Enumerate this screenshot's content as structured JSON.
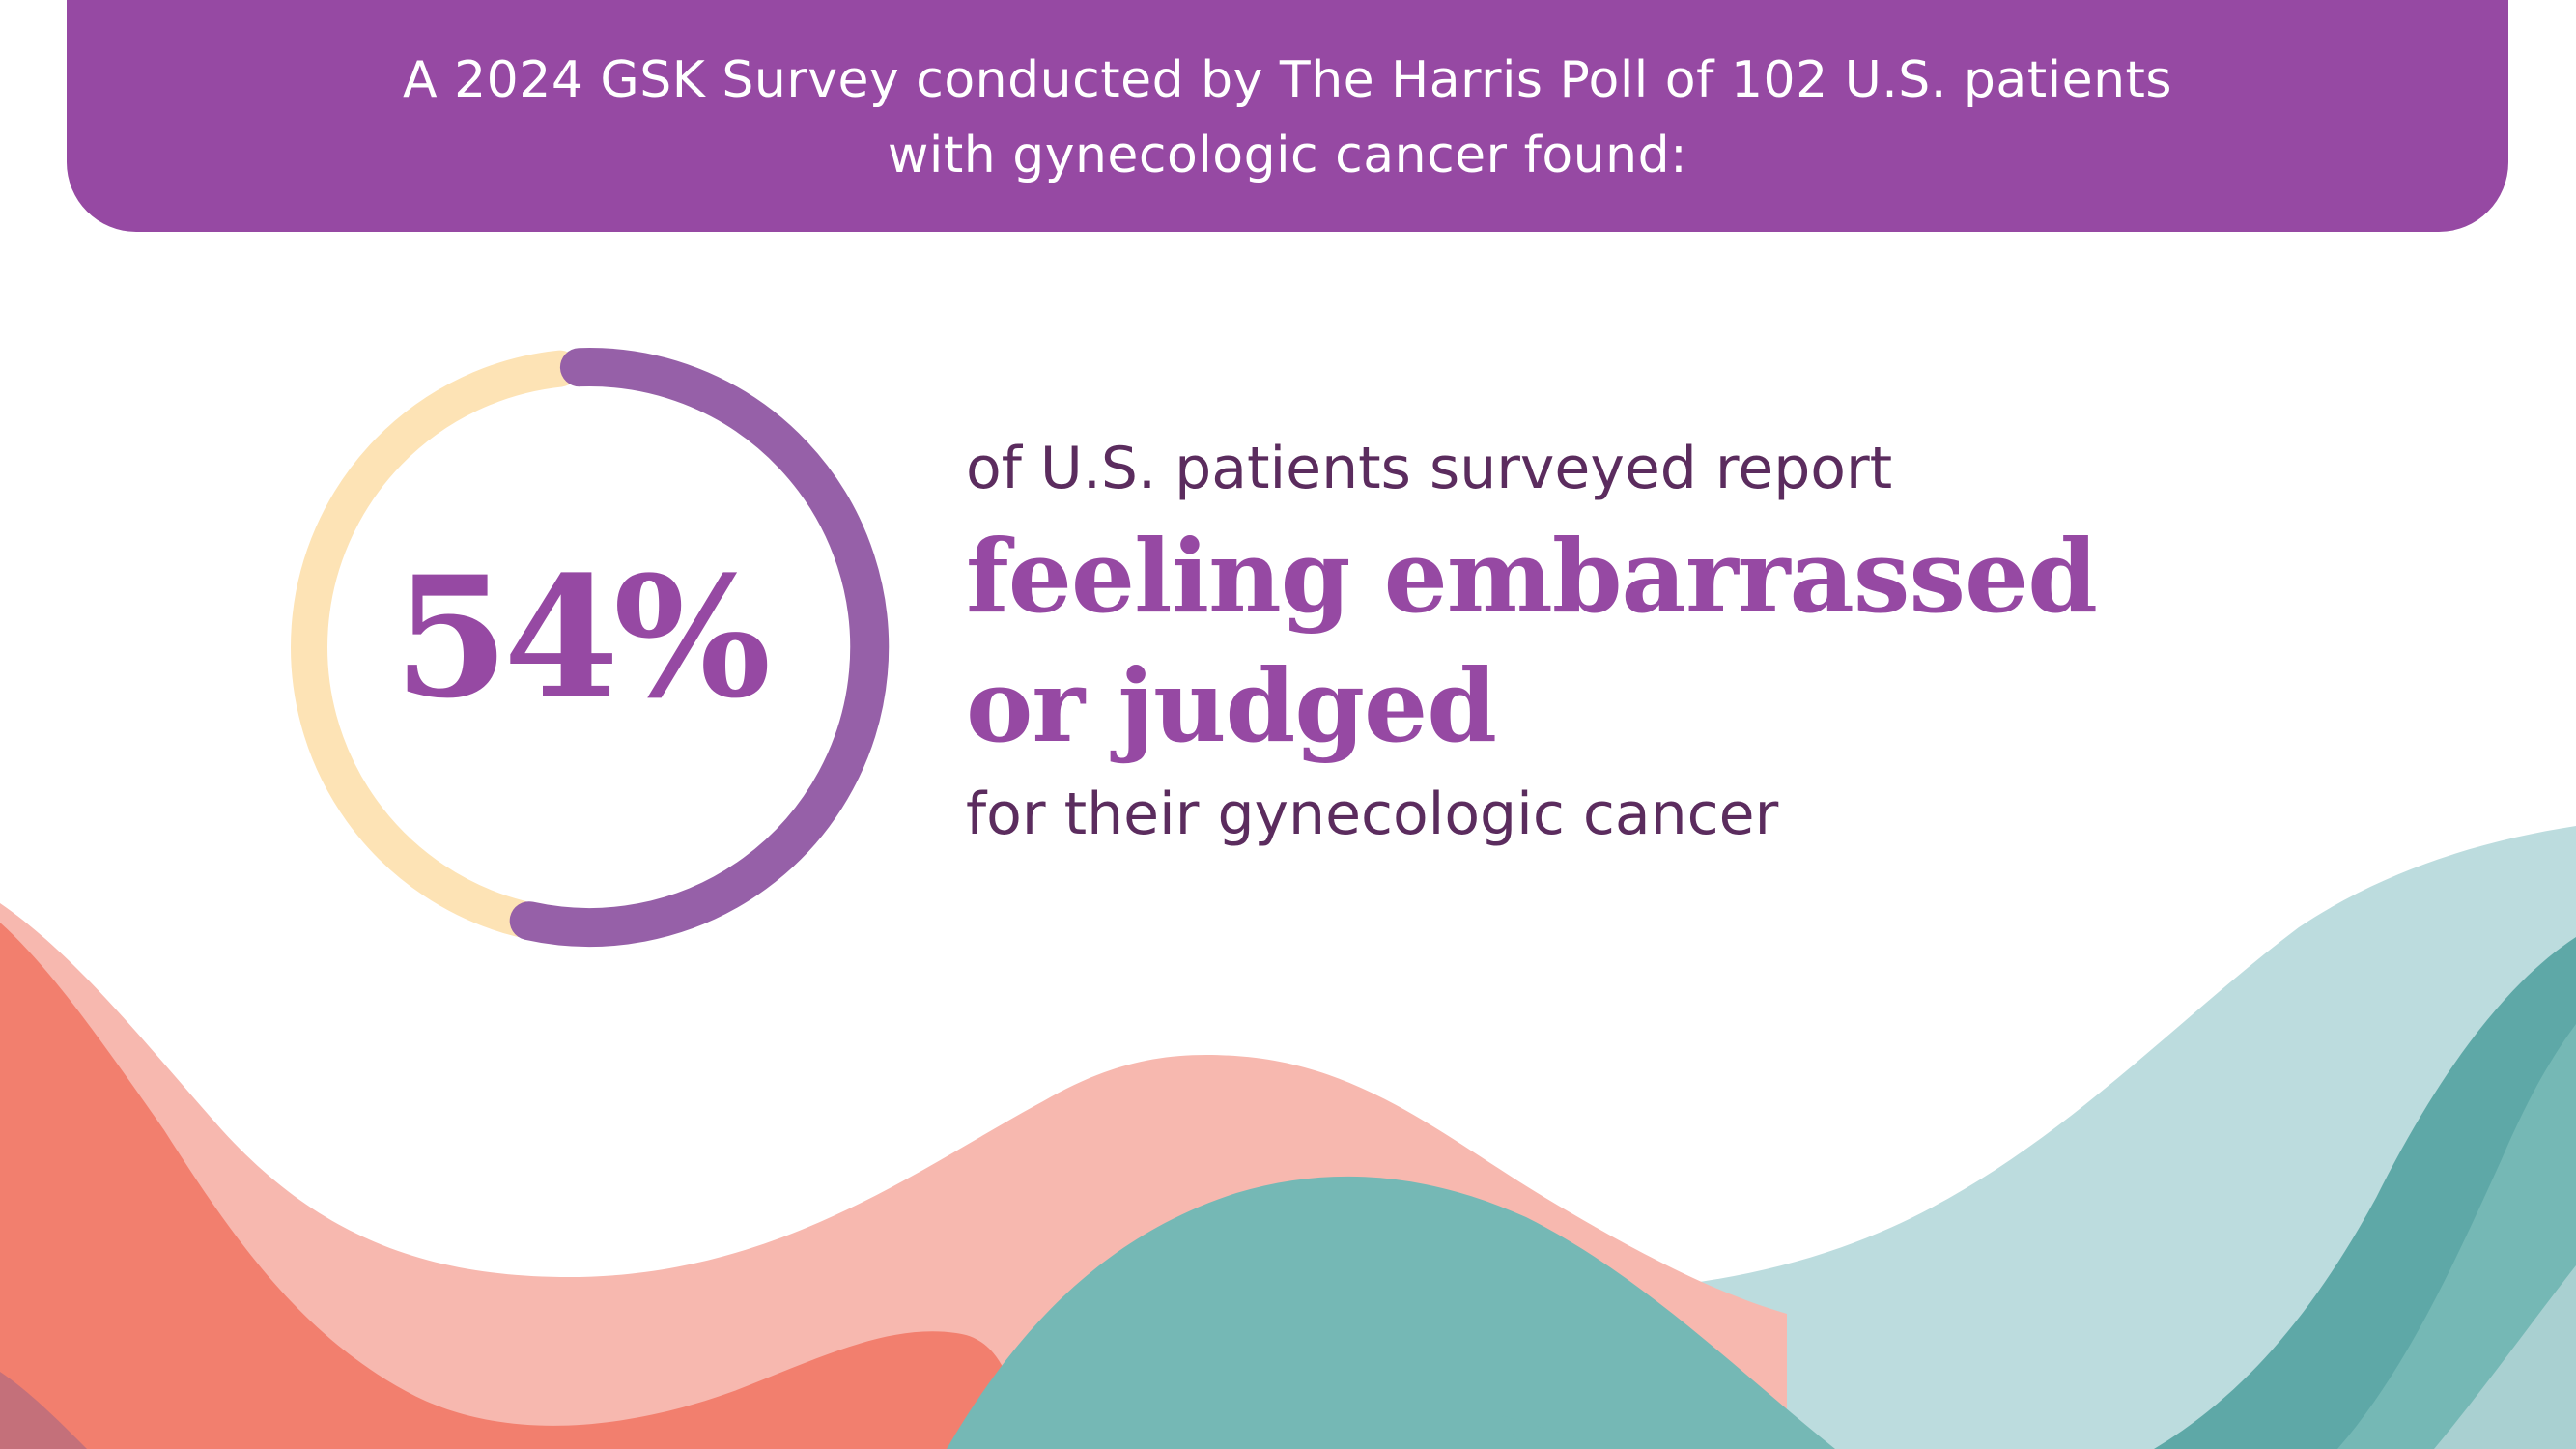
{
  "banner": {
    "line1": "A 2024 GSK Survey conducted by The Harris Poll of 102 U.S. patients",
    "line2": "with gynecologic cancer found:"
  },
  "stat": {
    "value_label": "54%",
    "percent": 54,
    "intro": "of U.S. patients surveyed report",
    "highlight_line1": "feeling embarrassed",
    "highlight_line2": "or judged",
    "outro": "for their gynecologic cancer"
  },
  "colors": {
    "purple": "#9649A3",
    "ring_purple": "#9660A8",
    "ring_cream": "#FDE3B5",
    "dark_text": "#5B2C5E",
    "coral": "#F27F6E",
    "salmon": "#F7B8AF",
    "teal": "#75B8B5",
    "light_teal": "#BCDCDE",
    "dark_teal": "#5EA8A7"
  }
}
